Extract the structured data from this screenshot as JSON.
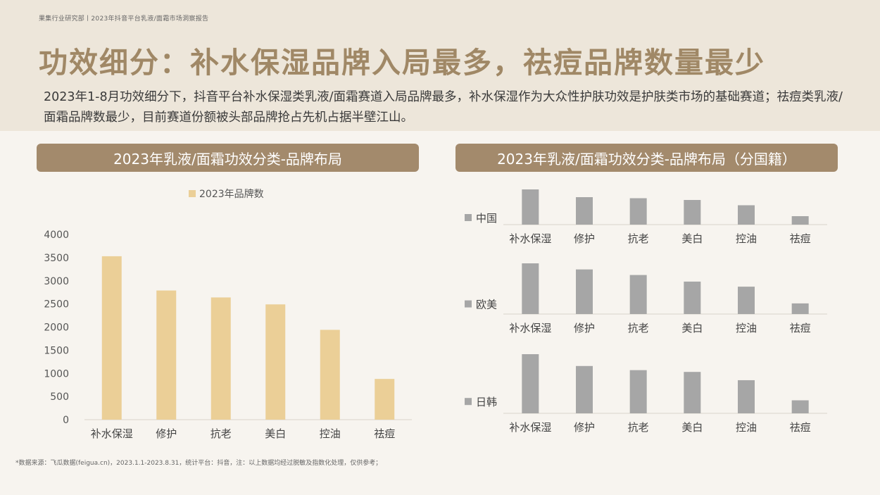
{
  "header": {
    "breadcrumb": "果集行业研究部丨2023年抖音平台乳液/面霜市场洞察报告",
    "title": "功效细分：补水保湿品牌入局最多，祛痘品牌数量最少",
    "subtitle": "2023年1-8月功效细分下，抖音平台补水保湿类乳液/面霜赛道入局品牌最多，补水保湿作为大众性护肤功效是护肤类市场的基础赛道；祛痘类乳液/面霜品牌数最少，目前赛道份额被头部品牌抢占先机占据半壁江山。"
  },
  "footnote": "*数据来源：飞瓜数据(feigua.cn)，2023.1.1-2023.8.31，统计平台：抖音，注：以上数据均经过脱敏及指数化处理，仅供参考；",
  "chart_data": [
    {
      "type": "bar",
      "title": "2023年乳液/面霜功效分类-品牌布局",
      "categories": [
        "补水保湿",
        "修护",
        "抗老",
        "美白",
        "控油",
        "祛痘"
      ],
      "series": [
        {
          "name": "2023年品牌数",
          "values": [
            3530,
            2790,
            2640,
            2490,
            1940,
            880
          ],
          "color": "#ebcf97"
        }
      ],
      "yticks": [
        "0",
        "500",
        "1000",
        "1500",
        "2000",
        "2500",
        "3000",
        "3500",
        "4000"
      ],
      "ylim": [
        0,
        4000
      ],
      "legend": "top-center"
    },
    {
      "type": "bar",
      "title": "2023年乳液/面霜功效分类-品牌布局（分国籍）",
      "categories": [
        "补水保湿",
        "修护",
        "抗老",
        "美白",
        "控油",
        "祛痘"
      ],
      "series": [
        {
          "name": "中国",
          "values": [
            100,
            78,
            75,
            70,
            55,
            24
          ],
          "color": "#a6a6a6"
        },
        {
          "name": "欧美",
          "values": [
            100,
            88,
            77,
            64,
            54,
            21
          ],
          "color": "#a6a6a6"
        },
        {
          "name": "日韩",
          "values": [
            100,
            80,
            73,
            70,
            56,
            22
          ],
          "color": "#a6a6a6"
        }
      ],
      "legend": "left"
    }
  ]
}
